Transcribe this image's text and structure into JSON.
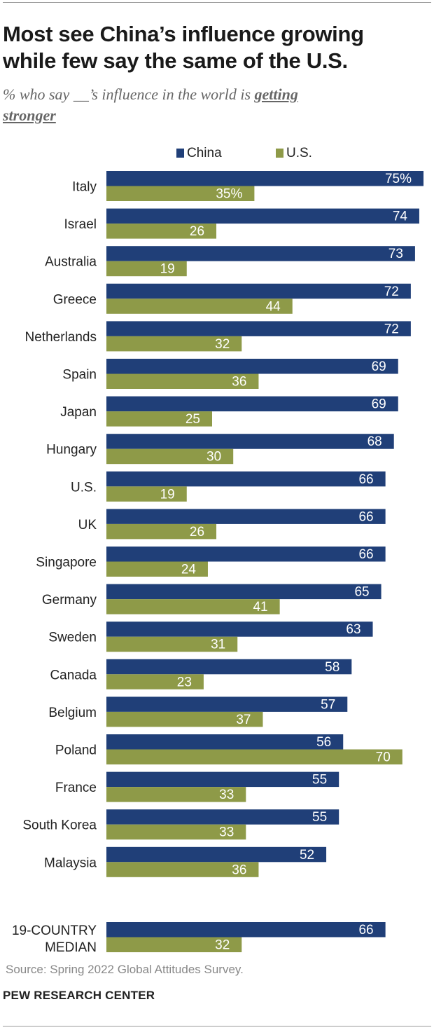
{
  "title_line1": "Most see China’s influence growing",
  "title_line2": "while few say the same of the U.S.",
  "subtitle_pre": "% who say __’s influence in the world is ",
  "subtitle_emph_a": "getting",
  "subtitle_emph_b": "stronger",
  "source": "Source: Spring 2022 Global Attitudes Survey.",
  "organization": "PEW RESEARCH CENTER",
  "colors": {
    "china": "#203f78",
    "us": "#8e9a48",
    "text": "#222222",
    "bar_label": "#ffffff"
  },
  "chart_data": {
    "type": "bar",
    "orientation": "horizontal",
    "title": "Most see China’s influence growing while few say the same of the U.S.",
    "subtitle": "% who say __’s influence in the world is getting stronger",
    "legend_placement": "top",
    "grid": false,
    "xlim": [
      0,
      75
    ],
    "categories": [
      "Italy",
      "Israel",
      "Australia",
      "Greece",
      "Netherlands",
      "Spain",
      "Japan",
      "Hungary",
      "U.S.",
      "UK",
      "Singapore",
      "Germany",
      "Sweden",
      "Canada",
      "Belgium",
      "Poland",
      "France",
      "South Korea",
      "Malaysia"
    ],
    "series": [
      {
        "name": "China",
        "values": [
          75,
          74,
          73,
          72,
          72,
          69,
          69,
          68,
          66,
          66,
          66,
          65,
          63,
          58,
          57,
          56,
          55,
          55,
          52
        ]
      },
      {
        "name": "U.S.",
        "values": [
          35,
          26,
          19,
          44,
          32,
          36,
          25,
          30,
          19,
          26,
          24,
          41,
          31,
          23,
          37,
          70,
          33,
          33,
          36
        ]
      }
    ],
    "value_labels": {
      "China": [
        "75%",
        "74",
        "73",
        "72",
        "72",
        "69",
        "69",
        "68",
        "66",
        "66",
        "66",
        "65",
        "63",
        "58",
        "57",
        "56",
        "55",
        "55",
        "52"
      ],
      "U.S.": [
        "35%",
        "26",
        "19",
        "44",
        "32",
        "36",
        "25",
        "30",
        "19",
        "26",
        "24",
        "41",
        "31",
        "23",
        "37",
        "70",
        "33",
        "33",
        "36"
      ]
    },
    "summary": {
      "label_lines": [
        "19-COUNTRY",
        "MEDIAN"
      ],
      "China": 66,
      "U.S.": 32,
      "labels": {
        "China": "66",
        "U.S.": "32"
      }
    }
  }
}
